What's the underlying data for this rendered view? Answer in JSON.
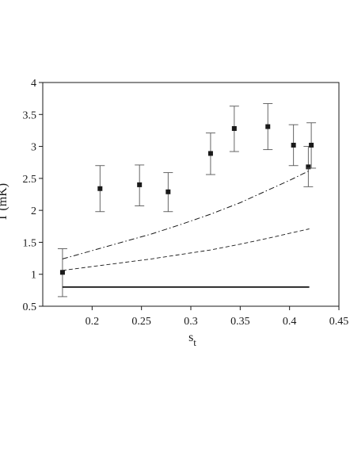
{
  "chart_data": {
    "type": "scatter",
    "title": "",
    "xlabel": "s",
    "xlabel_sub": "t",
    "ylabel": "T (mK)",
    "xlim": [
      0.15,
      0.45
    ],
    "ylim": [
      0.5,
      4.0
    ],
    "xticks": [
      0.2,
      0.25,
      0.3,
      0.35,
      0.4,
      0.45
    ],
    "xtick_labels": [
      "0.2",
      "0.25",
      "0.3",
      "0.35",
      "0.4",
      "0.45"
    ],
    "yticks": [
      0.5,
      1.0,
      1.5,
      2.0,
      2.5,
      3.0,
      3.5,
      4.0
    ],
    "ytick_labels": [
      "0.5",
      "1",
      "1.5",
      "2",
      "2.5",
      "3",
      "3.5",
      "4"
    ],
    "grid": false,
    "legend": "none",
    "colors": {
      "data": "#1a1a1a",
      "axis": "#1a1a1a",
      "errorbar": "#555555"
    },
    "series": [
      {
        "style": "square-markers-with-errorbars",
        "points": [
          {
            "x": 0.17,
            "y": 1.03,
            "ylow": 0.65,
            "yhigh": 1.4
          },
          {
            "x": 0.208,
            "y": 2.34,
            "ylow": 1.98,
            "yhigh": 2.7
          },
          {
            "x": 0.248,
            "y": 2.4,
            "ylow": 2.07,
            "yhigh": 2.71
          },
          {
            "x": 0.277,
            "y": 2.29,
            "ylow": 1.98,
            "yhigh": 2.59
          },
          {
            "x": 0.32,
            "y": 2.89,
            "ylow": 2.56,
            "yhigh": 3.21
          },
          {
            "x": 0.344,
            "y": 3.28,
            "ylow": 2.92,
            "yhigh": 3.63
          },
          {
            "x": 0.378,
            "y": 3.31,
            "ylow": 2.95,
            "yhigh": 3.67
          },
          {
            "x": 0.404,
            "y": 3.02,
            "ylow": 2.7,
            "yhigh": 3.34
          },
          {
            "x": 0.419,
            "y": 2.68,
            "ylow": 2.37,
            "yhigh": 3.0
          },
          {
            "x": 0.422,
            "y": 3.02,
            "ylow": 2.66,
            "yhigh": 3.37
          }
        ]
      },
      {
        "style": "dash-dot",
        "x": [
          0.17,
          0.2,
          0.23,
          0.26,
          0.29,
          0.32,
          0.35,
          0.38,
          0.4,
          0.42
        ],
        "y": [
          1.24,
          1.37,
          1.5,
          1.63,
          1.78,
          1.94,
          2.12,
          2.33,
          2.47,
          2.62
        ]
      },
      {
        "style": "dashed",
        "x": [
          0.17,
          0.2,
          0.23,
          0.26,
          0.29,
          0.32,
          0.35,
          0.38,
          0.4,
          0.42
        ],
        "y": [
          1.06,
          1.12,
          1.18,
          1.24,
          1.31,
          1.38,
          1.47,
          1.57,
          1.64,
          1.71
        ]
      },
      {
        "style": "solid",
        "x": [
          0.17,
          0.42
        ],
        "y": [
          0.8,
          0.8
        ]
      }
    ]
  }
}
